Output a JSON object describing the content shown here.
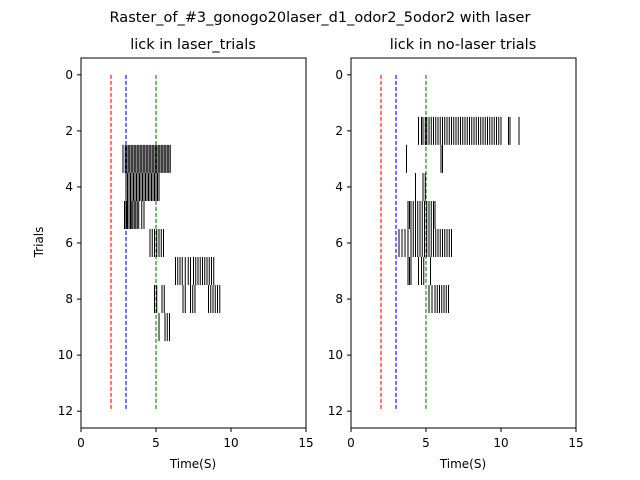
{
  "figure": {
    "suptitle": "Raster_of_#3_gonogo20laser_d1_odor2_5odor2 with laser"
  },
  "chart_data": [
    {
      "type": "raster",
      "title": "lick in laser_trials",
      "xlabel": "Time(S)",
      "ylabel": "Trials",
      "xlim": [
        0,
        15
      ],
      "ylim": [
        12.6,
        -0.6
      ],
      "y_inverted": true,
      "xticks": [
        0,
        5,
        10,
        15
      ],
      "yticks": [
        0,
        2,
        4,
        6,
        8,
        10,
        12
      ],
      "reference_lines": [
        {
          "x": 2,
          "color": "#ff0000",
          "style": "dashed",
          "y_range": [
            0,
            12
          ]
        },
        {
          "x": 3,
          "color": "#0000ff",
          "style": "dashed",
          "y_range": [
            0,
            12
          ]
        },
        {
          "x": 5,
          "color": "#008000",
          "style": "dashed",
          "y_range": [
            0,
            12
          ]
        }
      ],
      "trials": [
        {
          "trial": 3,
          "licks": [
            2.8,
            2.95,
            3.05,
            3.15,
            3.25,
            3.35,
            3.45,
            3.55,
            3.65,
            3.75,
            3.85,
            3.95,
            4.05,
            4.15,
            4.25,
            4.35,
            4.45,
            4.55,
            4.65,
            4.75,
            4.85,
            4.95,
            5.05,
            5.15,
            5.25,
            5.35,
            5.45,
            5.55,
            5.65,
            5.75,
            5.85,
            5.95
          ]
        },
        {
          "trial": 4,
          "licks": [
            3.0,
            3.1,
            3.2,
            3.3,
            3.4,
            3.5,
            3.6,
            3.7,
            3.8,
            3.9,
            4.0,
            4.1,
            4.2,
            4.3,
            4.4,
            4.5,
            4.6,
            4.7,
            4.8,
            4.9,
            5.0,
            5.1,
            5.2
          ]
        },
        {
          "trial": 5,
          "licks": [
            2.9,
            3.0,
            3.05,
            3.1,
            3.2,
            3.3,
            3.35,
            3.45,
            3.55,
            3.65,
            3.75,
            3.85,
            4.05,
            4.2
          ]
        },
        {
          "trial": 6,
          "licks": [
            4.6,
            4.75,
            4.9,
            5.05,
            5.2,
            5.35,
            5.5
          ]
        },
        {
          "trial": 7,
          "licks": [
            6.3,
            6.45,
            6.6,
            6.75,
            6.95,
            7.15,
            7.3,
            7.5,
            7.65,
            7.8,
            7.95,
            8.1,
            8.25,
            8.4,
            8.55,
            8.7,
            8.85
          ]
        },
        {
          "trial": 8,
          "licks": [
            4.9,
            5.05,
            5.4,
            5.55,
            6.8,
            6.95,
            7.3,
            7.45,
            7.6,
            8.5,
            8.65,
            8.8,
            8.95,
            9.1,
            9.25
          ]
        },
        {
          "trial": 9,
          "licks": [
            5.2,
            5.6,
            5.75,
            5.9
          ]
        }
      ]
    },
    {
      "type": "raster",
      "title": "lick in no-laser trials",
      "xlabel": "Time(S)",
      "ylabel": "",
      "xlim": [
        0,
        15
      ],
      "ylim": [
        12.6,
        -0.6
      ],
      "y_inverted": true,
      "xticks": [
        0,
        5,
        10,
        15
      ],
      "yticks": [
        0,
        2,
        4,
        6,
        8,
        10,
        12
      ],
      "reference_lines": [
        {
          "x": 2,
          "color": "#ff0000",
          "style": "dashed",
          "y_range": [
            0,
            12
          ]
        },
        {
          "x": 3,
          "color": "#0000ff",
          "style": "dashed",
          "y_range": [
            0,
            12
          ]
        },
        {
          "x": 5,
          "color": "#008000",
          "style": "dashed",
          "y_range": [
            0,
            12
          ]
        }
      ],
      "trials": [
        {
          "trial": 2,
          "licks": [
            4.5,
            4.7,
            4.8,
            4.95,
            5.05,
            5.2,
            5.35,
            5.5,
            5.65,
            5.8,
            5.95,
            6.1,
            6.25,
            6.4,
            6.55,
            6.7,
            6.85,
            7.0,
            7.15,
            7.3,
            7.45,
            7.6,
            7.75,
            7.9,
            8.05,
            8.2,
            8.35,
            8.5,
            8.65,
            8.8,
            8.95,
            9.1,
            9.25,
            9.4,
            9.55,
            9.7,
            9.85,
            10.0,
            10.5,
            10.6,
            11.2
          ]
        },
        {
          "trial": 3,
          "licks": [
            3.7,
            6.0,
            6.1
          ]
        },
        {
          "trial": 4,
          "licks": [
            4.3,
            4.8,
            4.95
          ]
        },
        {
          "trial": 5,
          "licks": [
            3.8,
            3.9,
            4.0,
            4.15,
            4.3,
            4.45,
            4.6,
            4.75,
            4.9,
            5.05,
            5.2,
            5.35,
            5.5,
            5.6
          ]
        },
        {
          "trial": 6,
          "licks": [
            3.2,
            3.4,
            3.6,
            3.8,
            4.0,
            4.15,
            4.3,
            4.45,
            4.6,
            4.75,
            4.9,
            5.05,
            5.2,
            5.35,
            5.5,
            5.65,
            5.8,
            5.95,
            6.1,
            6.25,
            6.4,
            6.55,
            6.7
          ]
        },
        {
          "trial": 7,
          "licks": [
            3.8,
            3.9,
            4.0,
            4.5,
            4.7,
            4.85,
            5.3
          ]
        },
        {
          "trial": 8,
          "licks": [
            5.2,
            5.4,
            5.6,
            5.75,
            5.9,
            6.05,
            6.2,
            6.35,
            6.5
          ]
        }
      ]
    }
  ]
}
